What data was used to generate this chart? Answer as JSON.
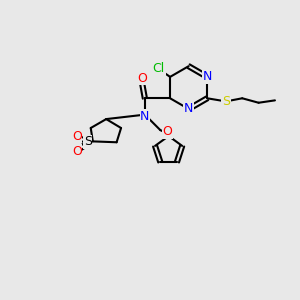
{
  "bg_color": "#e8e8e8",
  "bond_color": "#000000",
  "atom_colors": {
    "N": "#0000ff",
    "O": "#ff0000",
    "S_yellow": "#cccc00",
    "S_black": "#000000",
    "Cl": "#00bb00",
    "C": "#000000"
  },
  "font_size_atom": 9,
  "font_size_small": 7
}
